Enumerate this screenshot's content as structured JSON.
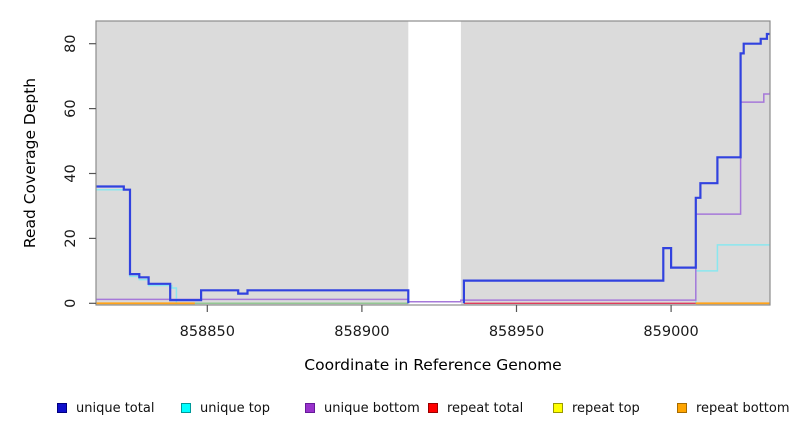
{
  "axes": {
    "xlabel": "Coordinate in Reference Genome",
    "ylabel": "Read Coverage Depth"
  },
  "chart_data": {
    "type": "line",
    "title": "",
    "xlabel": "Coordinate in Reference Genome",
    "ylabel": "Read Coverage Depth",
    "xlim": [
      858814,
      859032
    ],
    "ylim": [
      0,
      87
    ],
    "xticks": [
      858850,
      858900,
      858950,
      859000
    ],
    "yticks": [
      0,
      20,
      40,
      60,
      80
    ],
    "grid": false,
    "panel_bg": "#DBDBDB",
    "box_color": "#8C8C8C",
    "tick_color": "#555555",
    "masked_region": {
      "x_start": 858915,
      "x_end": 858932,
      "color": "#FFFFFF"
    },
    "legend_position": "bottom",
    "point_format": "step points [coordinate, depth]; depth holds until next coordinate",
    "draw_order": [
      "repeat top",
      "unique top",
      "unlabeled green baseline",
      "repeat total",
      "repeat bottom",
      "unique bottom",
      "unique total"
    ],
    "series": [
      {
        "name": "unique total",
        "in_legend": true,
        "line_color": "#3142DF",
        "legend_fill": "#1010CC",
        "legend_border": "#000080",
        "width": 2.2,
        "segments": [
          [
            [
              858814,
              36
            ],
            [
              858823,
              35
            ],
            [
              858825,
              9
            ],
            [
              858828,
              8
            ],
            [
              858831,
              6
            ],
            [
              858838,
              1
            ],
            [
              858848,
              4
            ],
            [
              858860,
              3
            ],
            [
              858863,
              4
            ],
            [
              858915,
              0
            ]
          ],
          [
            [
              858933,
              0
            ],
            [
              858933,
              7
            ],
            [
              858997.5,
              17
            ],
            [
              859000,
              11
            ],
            [
              859008,
              32.5
            ],
            [
              859009.5,
              37
            ],
            [
              859015,
              45
            ],
            [
              859022.5,
              77
            ],
            [
              859023.5,
              80
            ],
            [
              859029,
              81.5
            ],
            [
              859031,
              83
            ],
            [
              859032,
              83
            ]
          ]
        ]
      },
      {
        "name": "unique top",
        "in_legend": true,
        "line_color": "#8AE7EF",
        "legend_fill": "#00FFFF",
        "legend_border": "#009999",
        "width": 1.5,
        "segments": [
          [
            [
              858814,
              35
            ],
            [
              858825,
              8.3
            ],
            [
              858828,
              7.3
            ],
            [
              858831,
              5.5
            ],
            [
              858838.5,
              4.7
            ],
            [
              858840,
              0
            ],
            [
              858846,
              0
            ]
          ],
          [
            [
              859008,
              0
            ],
            [
              859008,
              10
            ],
            [
              859015,
              18
            ],
            [
              859032,
              18
            ]
          ]
        ]
      },
      {
        "name": "unique bottom",
        "in_legend": true,
        "line_color": "#A678D9",
        "legend_fill": "#9932CC",
        "legend_border": "#661A99",
        "width": 1.5,
        "segments": [
          [
            [
              858814,
              1.2
            ],
            [
              858915,
              0.5
            ],
            [
              858932,
              1
            ],
            [
              859008,
              27.5
            ],
            [
              859022.5,
              62
            ],
            [
              859030,
              64.5
            ],
            [
              859032,
              65
            ]
          ]
        ]
      },
      {
        "name": "repeat total",
        "in_legend": true,
        "line_color": "#DE3D5C",
        "legend_fill": "#FF0000",
        "legend_border": "#990000",
        "width": 1.4,
        "segments": [
          [
            [
              858933,
              0
            ],
            [
              859008,
              0
            ]
          ]
        ]
      },
      {
        "name": "repeat top",
        "in_legend": true,
        "line_color": "#FFFF00",
        "legend_fill": "#FFFF00",
        "legend_border": "#999900",
        "width": 1.3,
        "segments": []
      },
      {
        "name": "repeat bottom",
        "in_legend": true,
        "line_color": "#FFA31A",
        "legend_fill": "#FFA500",
        "legend_border": "#A66B00",
        "width": 1.8,
        "segments": [
          [
            [
              858814,
              0
            ],
            [
              858846,
              0
            ]
          ],
          [
            [
              859008,
              0
            ],
            [
              859032,
              0
            ]
          ]
        ]
      },
      {
        "name": "unlabeled green baseline",
        "in_legend": false,
        "line_color": "#93C793",
        "width": 1.5,
        "segments": [
          [
            [
              858846,
              0
            ],
            [
              858915,
              0
            ]
          ]
        ]
      }
    ]
  },
  "legend_item_lefts": [
    57,
    181,
    305,
    428,
    553,
    677
  ]
}
